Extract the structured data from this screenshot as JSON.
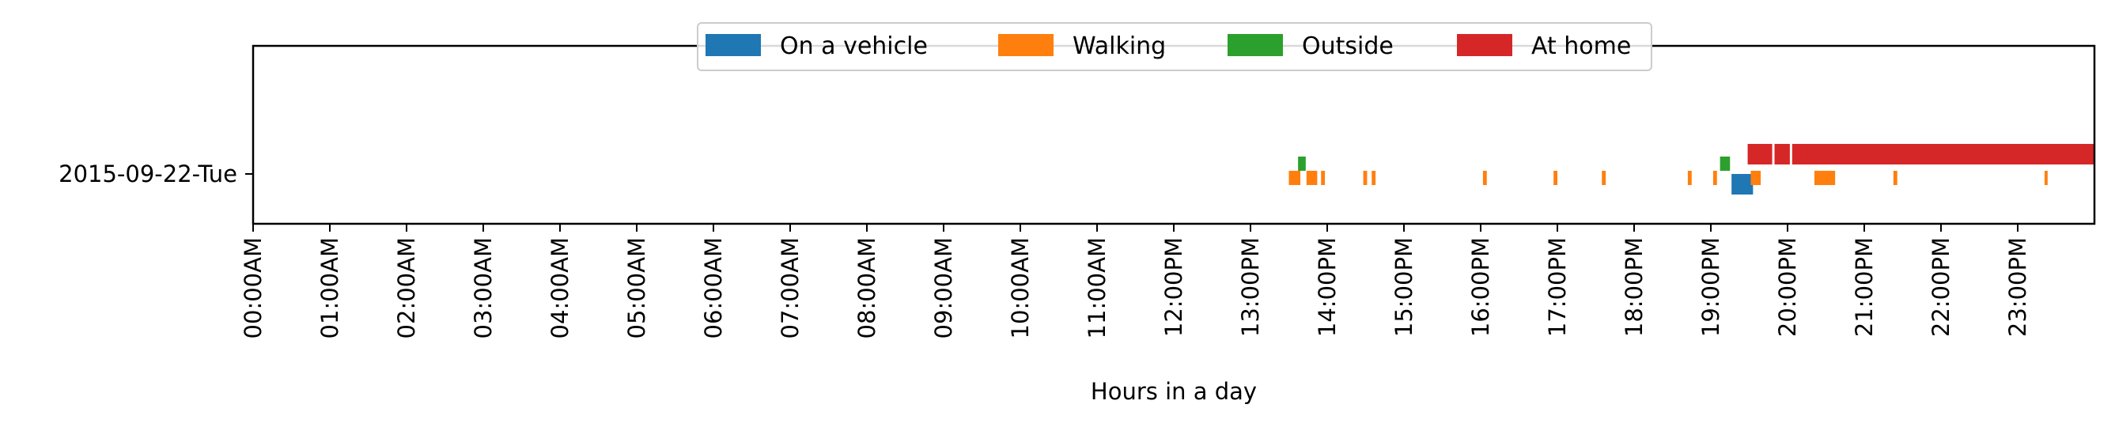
{
  "chart_data": {
    "type": "timeline",
    "xlabel": "Hours in a day",
    "xlim": [
      0,
      24
    ],
    "x_tick_labels": [
      "00:00AM",
      "01:00AM",
      "02:00AM",
      "03:00AM",
      "04:00AM",
      "05:00AM",
      "06:00AM",
      "07:00AM",
      "08:00AM",
      "09:00AM",
      "10:00AM",
      "11:00AM",
      "12:00PM",
      "13:00PM",
      "14:00PM",
      "15:00PM",
      "16:00PM",
      "17:00PM",
      "18:00PM",
      "19:00PM",
      "20:00PM",
      "21:00PM",
      "22:00PM",
      "23:00PM"
    ],
    "rows": [
      "2015-09-22-Tue"
    ],
    "legend_position": "top-center",
    "series": [
      {
        "name": "On a vehicle",
        "color": "#1f77b4",
        "row": "2015-09-22-Tue",
        "intervals": [
          [
            19.27,
            19.55
          ]
        ]
      },
      {
        "name": "Walking",
        "color": "#ff7f0e",
        "row": "2015-09-22-Tue",
        "intervals": [
          [
            13.5,
            13.65
          ],
          [
            13.73,
            13.87
          ],
          [
            13.92,
            13.97
          ],
          [
            14.47,
            14.52
          ],
          [
            14.58,
            14.63
          ],
          [
            16.03,
            16.08
          ],
          [
            16.95,
            17.0
          ],
          [
            17.58,
            17.63
          ],
          [
            18.7,
            18.75
          ],
          [
            19.03,
            19.08
          ],
          [
            19.52,
            19.65
          ],
          [
            20.35,
            20.62
          ],
          [
            21.38,
            21.43
          ],
          [
            23.35,
            23.39
          ]
        ]
      },
      {
        "name": "Outside",
        "color": "#2ca02c",
        "row": "2015-09-22-Tue",
        "intervals": [
          [
            13.62,
            13.72
          ],
          [
            19.12,
            19.25
          ]
        ]
      },
      {
        "name": "At home",
        "color": "#d62728",
        "row": "2015-09-22-Tue",
        "intervals": [
          [
            19.48,
            19.8
          ],
          [
            19.83,
            20.03
          ],
          [
            20.06,
            24.0
          ]
        ]
      }
    ]
  }
}
